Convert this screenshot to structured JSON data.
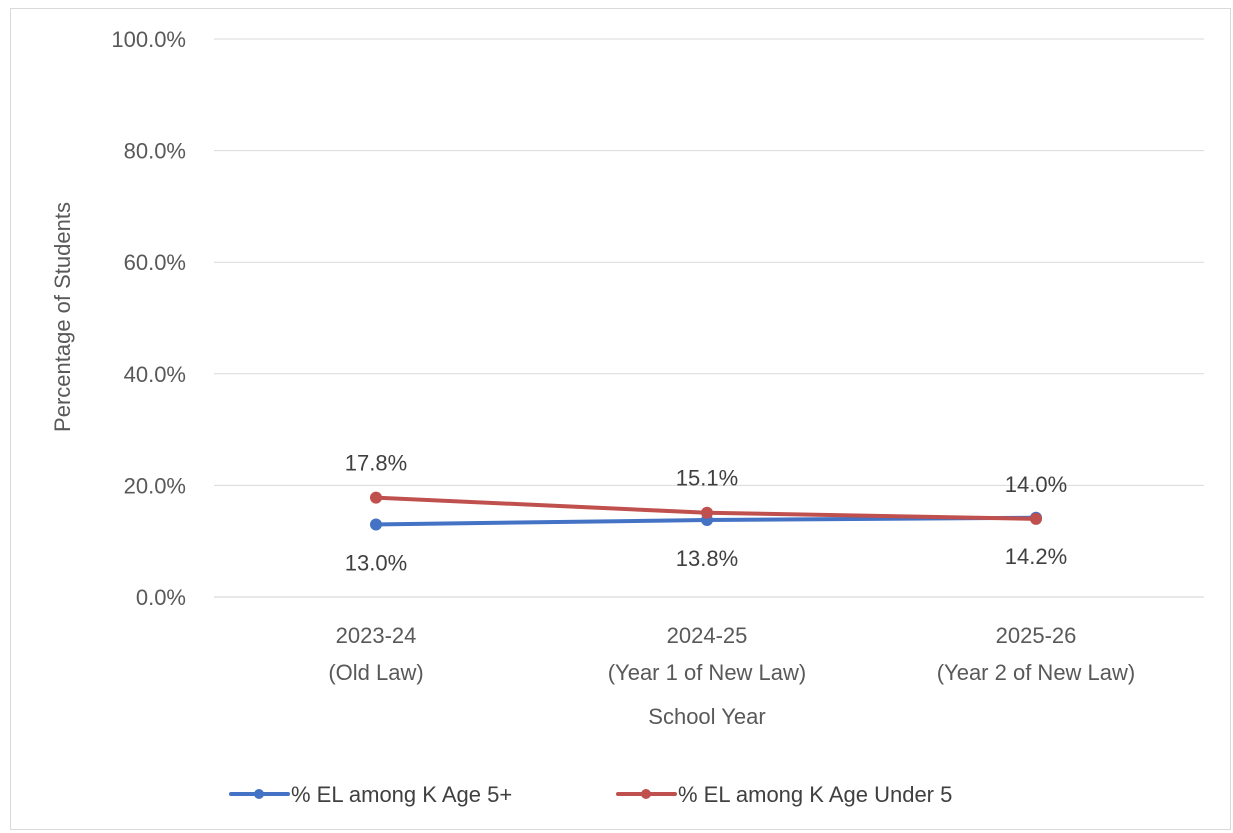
{
  "chart_data": {
    "type": "line",
    "title": "",
    "xlabel": "School Year",
    "ylabel": "Percentage of Students",
    "categories": [
      [
        "2023-24",
        "(Old Law)"
      ],
      [
        "2024-25",
        "(Year 1 of New Law)"
      ],
      [
        "2025-26",
        "(Year 2 of New Law)"
      ]
    ],
    "y_ticks": [
      "0.0%",
      "20.0%",
      "40.0%",
      "60.0%",
      "80.0%",
      "100.0%"
    ],
    "ylim": [
      0,
      100
    ],
    "grid": true,
    "legend_position": "bottom",
    "series": [
      {
        "name": "% EL among K Age 5+",
        "color": "#4472c4",
        "values": [
          13.0,
          13.8,
          14.2
        ],
        "labels": [
          "13.0%",
          "13.8%",
          "14.2%"
        ],
        "label_position": "below"
      },
      {
        "name": "% EL among K Age Under 5",
        "color": "#c0504d",
        "values": [
          17.8,
          15.1,
          14.0
        ],
        "labels": [
          "17.8%",
          "15.1%",
          "14.0%"
        ],
        "label_position": "above"
      }
    ]
  }
}
